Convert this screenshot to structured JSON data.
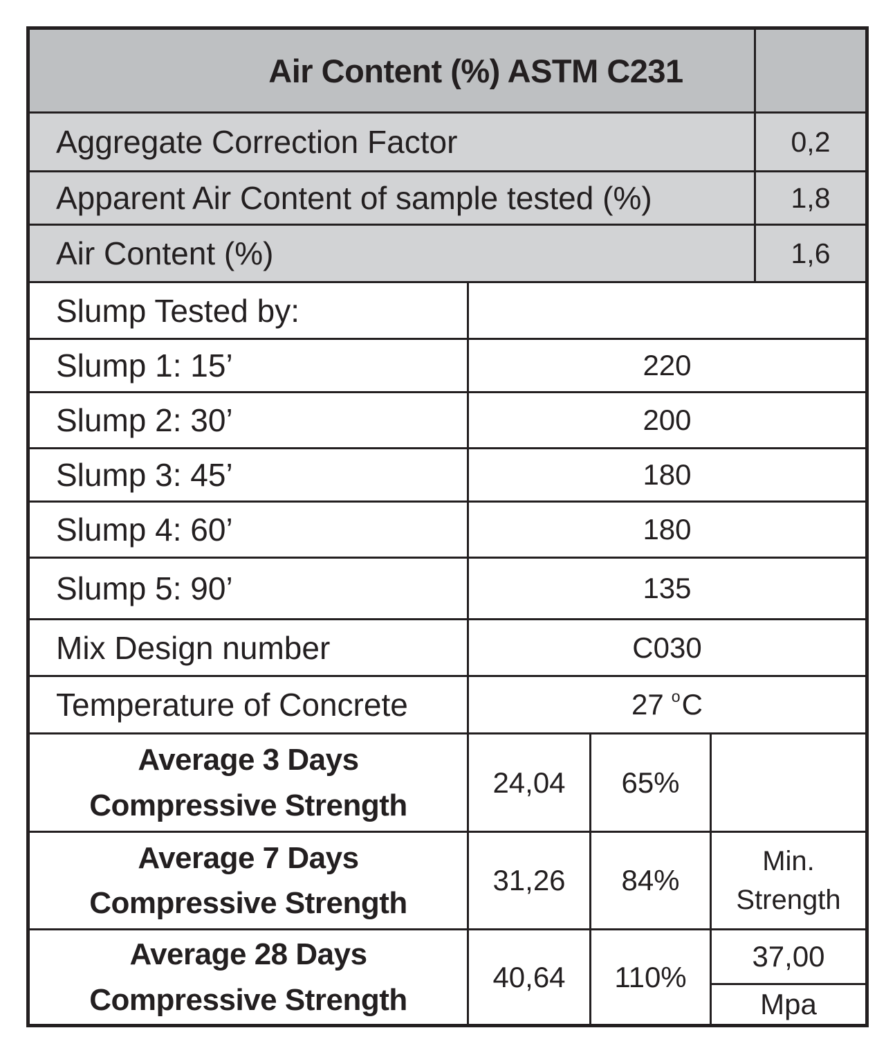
{
  "colors": {
    "border": "#231f20",
    "header_bg": "#bec0c2",
    "subheader_bg": "#d2d3d5",
    "body_bg": "#ffffff",
    "text": "#231f20"
  },
  "header": {
    "title": "Air Content (%) ASTM C231"
  },
  "air_section": {
    "rows": [
      {
        "label": "Aggregate Correction Factor",
        "value": "0,2"
      },
      {
        "label": "Apparent Air Content of sample tested (%)",
        "value": "1,8"
      },
      {
        "label": "Air Content (%)",
        "value": "1,6"
      }
    ]
  },
  "slump_section": {
    "rows": [
      {
        "label": "Slump Tested by:",
        "value": ""
      },
      {
        "label": "Slump 1: 15’",
        "value": "220"
      },
      {
        "label": "Slump 2: 30’",
        "value": "200"
      },
      {
        "label": "Slump 3: 45’",
        "value": "180"
      },
      {
        "label": "Slump 4: 60’",
        "value": "180"
      },
      {
        "label": "Slump 5: 90’",
        "value": "135"
      },
      {
        "label": "Mix Design number",
        "value": "C030"
      }
    ]
  },
  "temperature_row": {
    "label": "Temperature of Concrete",
    "value": "27",
    "degree_symbol": "o",
    "unit": "C"
  },
  "strength_section": {
    "rows": [
      {
        "label_line1": "Average 3 Days",
        "label_line2": "Compressive Strength",
        "value": "24,04",
        "percent": "65%",
        "note_line1": "",
        "note_line2": ""
      },
      {
        "label_line1": "Average 7 Days",
        "label_line2": "Compressive Strength",
        "value": "31,26",
        "percent": "84%",
        "note_line1": "Min.",
        "note_line2": "Strength"
      },
      {
        "label_line1": "Average 28 Days",
        "label_line2": "Compressive Strength",
        "value": "40,64",
        "percent": "110%",
        "min_strength_value": "37,00",
        "min_strength_unit": "Mpa"
      }
    ]
  }
}
